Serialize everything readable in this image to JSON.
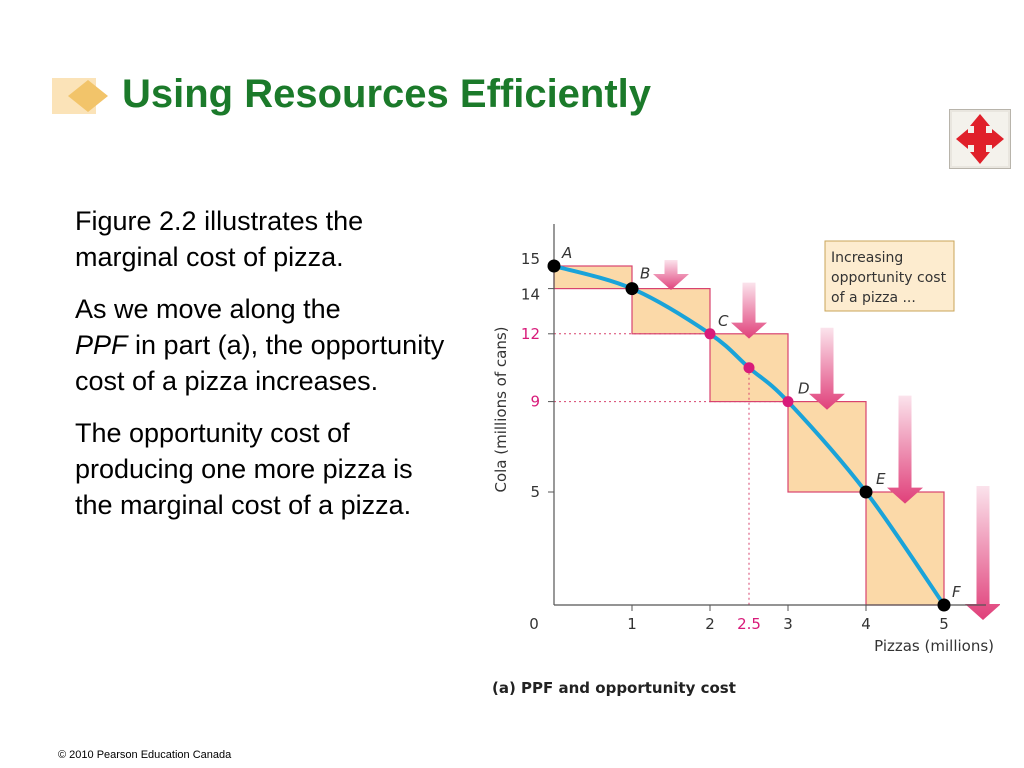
{
  "slide": {
    "title": "Using Resources Efficiently",
    "nav_button_icon": "four-way-arrows-icon",
    "paragraphs": {
      "p1": "Figure 2.2 illustrates the marginal cost of pizza.",
      "p2_before": "As we move along the",
      "p2_ppf": "PPF",
      "p2_after": "in part (a), the opportunity cost of a pizza increases.",
      "p3": "The opportunity cost of producing one more pizza is the marginal cost of a pizza."
    },
    "footer": "© 2010 Pearson Education Canada",
    "colors": {
      "title": "#1b7a2a",
      "curve": "#1aa3d9",
      "box_fill": "#fbd9a8",
      "box_stroke": "#d8436f",
      "arrow": "#e0407a",
      "magenta_point": "#d81b7a",
      "black_point": "#000000"
    }
  },
  "chart_data": {
    "type": "line",
    "title": "(a) PPF and opportunity cost",
    "xlabel": "Pizzas (millions)",
    "ylabel": "Cola (millions of cans)",
    "xlim": [
      0,
      5
    ],
    "ylim": [
      0,
      15
    ],
    "x_ticks": [
      "0",
      "1",
      "2",
      "2.5",
      "3",
      "4",
      "5"
    ],
    "y_ticks": [
      "0",
      "5",
      "9",
      "12",
      "14",
      "15"
    ],
    "series": [
      {
        "points": [
          {
            "label": "A",
            "x": 0,
            "y": 15
          },
          {
            "label": "B",
            "x": 1,
            "y": 14
          },
          {
            "label": "C",
            "x": 2,
            "y": 12
          },
          {
            "label": "",
            "x": 2.5,
            "y": 10.5
          },
          {
            "label": "D",
            "x": 3,
            "y": 9
          },
          {
            "label": "E",
            "x": 4,
            "y": 5
          },
          {
            "label": "F",
            "x": 5,
            "y": 0
          }
        ]
      }
    ],
    "opportunity_cost_steps": [
      {
        "from_x": 0,
        "to_x": 1,
        "cost": 1
      },
      {
        "from_x": 1,
        "to_x": 2,
        "cost": 2
      },
      {
        "from_x": 2,
        "to_x": 3,
        "cost": 3
      },
      {
        "from_x": 3,
        "to_x": 4,
        "cost": 4
      },
      {
        "from_x": 4,
        "to_x": 5,
        "cost": 5
      }
    ],
    "annotation": "Increasing opportunity cost of a pizza ..."
  }
}
